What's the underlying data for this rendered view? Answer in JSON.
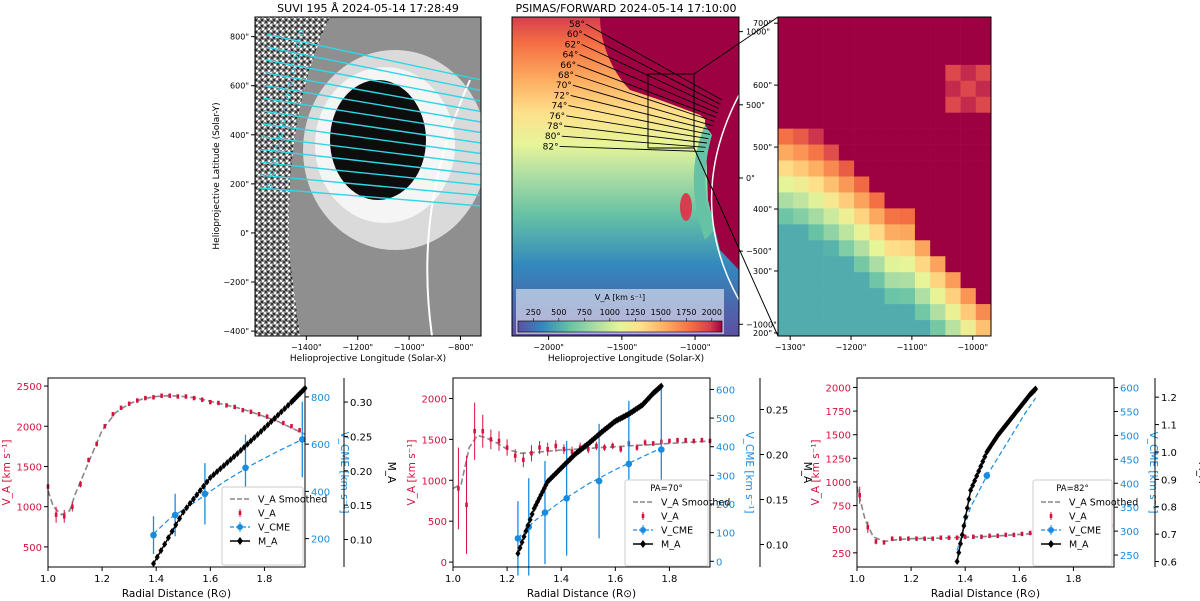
{
  "chart_data": [
    {
      "type": "image",
      "panel": "suvi",
      "title": "SUVI 195 Å 2024-05-14 17:28:49",
      "xlabel": "Helioprojective Longitude (Solar-X)",
      "ylabel": "Helioprojective Latitude (Solar-Y)",
      "xlim": [
        -1600,
        -720
      ],
      "ylim": [
        -420,
        880
      ],
      "xticks": [
        -1400,
        -1200,
        -1000,
        -800
      ],
      "xtick_labels": [
        "−1400\"",
        "−1200\"",
        "−1000\"",
        "−800\""
      ],
      "yticks": [
        -400,
        -200,
        0,
        200,
        400,
        600,
        800
      ],
      "ytick_labels": [
        "−400\"",
        "−200\"",
        "0\"",
        "200\"",
        "400\"",
        "600\"",
        "800\""
      ]
    },
    {
      "type": "heatmap",
      "panel": "psimas",
      "title": "PSIMAS/FORWARD 2024-05-14 17:10:00",
      "xlabel": "Helioprojective Longitude (Solar-X)",
      "xlim": [
        -2250,
        -700
      ],
      "ylim": [
        -1080,
        1100
      ],
      "xticks": [
        -2000,
        -1500,
        -1000
      ],
      "xtick_labels": [
        "−2000\"",
        "−1500\"",
        "−1000\""
      ],
      "yticks": [
        -1000,
        -500,
        0,
        500,
        1000
      ],
      "ytick_labels": [
        "−1000\"",
        "−500\"",
        "0\"",
        "500\"",
        "1000\""
      ],
      "pa_labels": [
        "58°",
        "60°",
        "62°",
        "64°",
        "66°",
        "68°",
        "70°",
        "72°",
        "74°",
        "76°",
        "78°",
        "80°",
        "82°"
      ],
      "colorbar": {
        "label": "V_A [km s⁻¹]",
        "ticks": [
          250,
          500,
          750,
          1000,
          1250,
          1500,
          1750,
          2000
        ],
        "range": [
          100,
          2100
        ]
      }
    },
    {
      "type": "heatmap",
      "panel": "zoom",
      "xlim": [
        -1320,
        -970
      ],
      "ylim": [
        195,
        710
      ],
      "xticks": [
        -1300,
        -1200,
        -1100,
        -1000
      ],
      "xtick_labels": [
        "−1300\"",
        "−1200\"",
        "−1100\"",
        "−1000\""
      ],
      "yticks": [
        200,
        300,
        400,
        500,
        600,
        700
      ],
      "ytick_labels": [
        "200\"",
        "300\"",
        "400\"",
        "500\"",
        "600\"",
        "700\""
      ]
    },
    {
      "type": "line",
      "panel": "pa58",
      "xlabel": "Radial Distance (R⊙)",
      "xlim": [
        1.0,
        1.95
      ],
      "xticks": [
        1.0,
        1.2,
        1.4,
        1.6,
        1.8
      ],
      "xtick_labels": [
        "1.0",
        "1.2",
        "1.4",
        "1.6",
        "1.8"
      ],
      "left_axis": {
        "label": "V_A [km s⁻¹]",
        "ylim": [
          250,
          2600
        ],
        "ticks": [
          500,
          1000,
          1500,
          2000,
          2500
        ],
        "tick_labels": [
          "500",
          "1000",
          "1500",
          "2000",
          "2500"
        ],
        "color": "#d6113f"
      },
      "right_axis": {
        "label": "V_CME [km s⁻¹]",
        "ylim": [
          80,
          880
        ],
        "ticks": [
          200,
          400,
          600,
          800
        ],
        "tick_labels": [
          "200",
          "400",
          "600",
          "800"
        ],
        "color": "#1a8ce0"
      },
      "far_axis": {
        "label": "M_A",
        "ylim": [
          0.06,
          0.335
        ],
        "ticks": [
          0.1,
          0.15,
          0.2,
          0.25,
          0.3
        ],
        "tick_labels": [
          "0.10",
          "0.15",
          "0.20",
          "0.25",
          "0.30"
        ]
      },
      "va_points": {
        "x": [
          1.0,
          1.03,
          1.06,
          1.09,
          1.12,
          1.15,
          1.18,
          1.21,
          1.24,
          1.27,
          1.3,
          1.33,
          1.36,
          1.39,
          1.42,
          1.45,
          1.48,
          1.51,
          1.54,
          1.57,
          1.6,
          1.63,
          1.66,
          1.69,
          1.72,
          1.75,
          1.78,
          1.81,
          1.84,
          1.87,
          1.9,
          1.93
        ],
        "y": [
          1250,
          900,
          880,
          1000,
          1280,
          1580,
          1780,
          2000,
          2150,
          2230,
          2280,
          2320,
          2350,
          2360,
          2380,
          2380,
          2370,
          2370,
          2350,
          2330,
          2300,
          2290,
          2260,
          2240,
          2200,
          2180,
          2150,
          2120,
          2090,
          2040,
          2000,
          1950
        ],
        "err": [
          150,
          100,
          80,
          60,
          40,
          30,
          30,
          20,
          20,
          20,
          15,
          15,
          15,
          15,
          15,
          15,
          15,
          15,
          15,
          15,
          15,
          15,
          15,
          15,
          15,
          15,
          15,
          15,
          15,
          15,
          15,
          15
        ]
      },
      "va_smoothed": {
        "x": [
          1.0,
          1.02,
          1.05,
          1.08,
          1.1,
          1.15,
          1.2,
          1.25,
          1.3,
          1.35,
          1.4,
          1.45,
          1.5,
          1.55,
          1.6,
          1.65,
          1.7,
          1.75,
          1.8,
          1.85,
          1.9,
          1.95
        ],
        "y": [
          1200,
          1000,
          900,
          950,
          1150,
          1550,
          1950,
          2170,
          2280,
          2340,
          2370,
          2380,
          2370,
          2350,
          2310,
          2270,
          2230,
          2180,
          2120,
          2060,
          1980,
          1900
        ]
      },
      "vcme": {
        "x": [
          1.39,
          1.47,
          1.58,
          1.73,
          1.94
        ],
        "y": [
          215,
          300,
          390,
          500,
          620
        ],
        "err": [
          80,
          90,
          130,
          140,
          160
        ]
      },
      "vcme_fit": {
        "x": [
          1.39,
          1.45,
          1.55,
          1.65,
          1.75,
          1.85,
          1.94
        ],
        "y": [
          220,
          285,
          360,
          440,
          510,
          570,
          620
        ]
      },
      "ma": {
        "x": [
          1.39,
          1.5,
          1.6,
          1.7,
          1.8,
          1.9,
          1.95
        ],
        "y": [
          0.065,
          0.14,
          0.19,
          0.225,
          0.262,
          0.3,
          0.32
        ]
      },
      "legend": {
        "title": "",
        "entries": [
          "V_A Smoothed",
          "V_A",
          "V_CME",
          "M_A"
        ]
      }
    },
    {
      "type": "line",
      "panel": "pa70",
      "xlabel": "Radial Distance (R⊙)",
      "xlim": [
        1.0,
        1.95
      ],
      "xticks": [
        1.0,
        1.2,
        1.4,
        1.6,
        1.8
      ],
      "xtick_labels": [
        "1.0",
        "1.2",
        "1.4",
        "1.6",
        "1.8"
      ],
      "left_axis": {
        "label": "V_A [km s⁻¹]",
        "ylim": [
          -60,
          2250
        ],
        "ticks": [
          0,
          500,
          1000,
          1500,
          2000
        ],
        "tick_labels": [
          "0",
          "500",
          "1000",
          "1500",
          "2000"
        ],
        "color": "#d6113f"
      },
      "right_axis": {
        "label": "V_CME [km s⁻¹]",
        "ylim": [
          -20,
          640
        ],
        "ticks": [
          0,
          100,
          200,
          300,
          400,
          500,
          600
        ],
        "tick_labels": [
          "0",
          "100",
          "200",
          "300",
          "400",
          "500",
          "600"
        ],
        "color": "#1a8ce0"
      },
      "far_axis": {
        "label": "M_A",
        "ylim": [
          0.075,
          0.285
        ],
        "ticks": [
          0.1,
          0.15,
          0.2,
          0.25
        ],
        "tick_labels": [
          "0.10",
          "0.15",
          "0.20",
          "0.25"
        ]
      },
      "va_points": {
        "x": [
          1.02,
          1.05,
          1.08,
          1.11,
          1.14,
          1.17,
          1.2,
          1.23,
          1.26,
          1.29,
          1.32,
          1.35,
          1.38,
          1.41,
          1.44,
          1.47,
          1.5,
          1.53,
          1.56,
          1.59,
          1.62,
          1.65,
          1.68,
          1.71,
          1.74,
          1.77,
          1.8,
          1.83,
          1.86,
          1.89,
          1.92,
          1.95
        ],
        "y": [
          900,
          700,
          1600,
          1600,
          1500,
          1480,
          1400,
          1300,
          1250,
          1330,
          1400,
          1380,
          1420,
          1380,
          1350,
          1400,
          1380,
          1420,
          1400,
          1420,
          1380,
          1450,
          1400,
          1460,
          1450,
          1470,
          1480,
          1490,
          1490,
          1480,
          1490,
          1480
        ],
        "err": [
          500,
          600,
          350,
          200,
          120,
          120,
          100,
          80,
          90,
          100,
          80,
          80,
          70,
          60,
          60,
          60,
          50,
          50,
          40,
          40,
          40,
          40,
          40,
          40,
          30,
          30,
          30,
          30,
          30,
          30,
          30,
          30
        ]
      },
      "va_smoothed": {
        "x": [
          1.0,
          1.03,
          1.06,
          1.09,
          1.12,
          1.15,
          1.2,
          1.25,
          1.3,
          1.4,
          1.5,
          1.6,
          1.7,
          1.8,
          1.9,
          1.95
        ],
        "y": [
          900,
          950,
          1400,
          1550,
          1520,
          1480,
          1380,
          1330,
          1340,
          1370,
          1390,
          1410,
          1430,
          1450,
          1470,
          1480
        ]
      },
      "vcme": {
        "x": [
          1.24,
          1.28,
          1.34,
          1.42,
          1.54,
          1.65,
          1.77
        ],
        "y": [
          80,
          120,
          170,
          220,
          280,
          340,
          390
        ],
        "err": [
          130,
          170,
          180,
          200,
          200,
          220,
          210
        ]
      },
      "vcme_fit": {
        "x": [
          1.24,
          1.3,
          1.4,
          1.5,
          1.6,
          1.7,
          1.77
        ],
        "y": [
          80,
          140,
          210,
          270,
          320,
          365,
          395
        ]
      },
      "ma": {
        "x": [
          1.24,
          1.3,
          1.35,
          1.4,
          1.45,
          1.5,
          1.55,
          1.6,
          1.65,
          1.7,
          1.74,
          1.77
        ],
        "y": [
          0.09,
          0.14,
          0.17,
          0.185,
          0.2,
          0.212,
          0.225,
          0.237,
          0.245,
          0.255,
          0.268,
          0.276
        ]
      },
      "legend": {
        "title": "PA=70°",
        "entries": [
          "V_A Smoothed",
          "V_A",
          "V_CME",
          "M_A"
        ]
      }
    },
    {
      "type": "line",
      "panel": "pa82",
      "xlabel": "Radial Distance (R⊙)",
      "xlim": [
        1.0,
        1.95
      ],
      "xticks": [
        1.0,
        1.2,
        1.4,
        1.6,
        1.8
      ],
      "xtick_labels": [
        "1.0",
        "1.2",
        "1.4",
        "1.6",
        "1.8"
      ],
      "left_axis": {
        "label": "V_A [km s⁻¹]",
        "ylim": [
          100,
          2100
        ],
        "ticks": [
          250,
          500,
          750,
          1000,
          1250,
          1500,
          1750,
          2000
        ],
        "tick_labels": [
          "250",
          "500",
          "750",
          "1000",
          "1250",
          "1500",
          "1750",
          "2000"
        ],
        "color": "#d6113f"
      },
      "right_axis": {
        "label": "V_CME [km s⁻¹]",
        "ylim": [
          225,
          620
        ],
        "ticks": [
          250,
          300,
          350,
          400,
          450,
          500,
          550,
          600
        ],
        "tick_labels": [
          "250",
          "300",
          "350",
          "400",
          "450",
          "500",
          "550",
          "600"
        ],
        "color": "#1a8ce0"
      },
      "far_axis": {
        "label": "M_A",
        "ylim": [
          0.58,
          1.27
        ],
        "ticks": [
          0.6,
          0.7,
          0.8,
          0.9,
          1.0,
          1.1,
          1.2
        ],
        "tick_labels": [
          "0.6",
          "0.7",
          "0.8",
          "0.9",
          "1.0",
          "1.1",
          "1.2"
        ]
      },
      "va_points": {
        "x": [
          1.01,
          1.04,
          1.07,
          1.1,
          1.13,
          1.16,
          1.19,
          1.22,
          1.25,
          1.28,
          1.31,
          1.34,
          1.37,
          1.4,
          1.43,
          1.46,
          1.49,
          1.52,
          1.55,
          1.58,
          1.61,
          1.64,
          1.67,
          1.7,
          1.73,
          1.76,
          1.79,
          1.82,
          1.85,
          1.88,
          1.91,
          1.94
        ],
        "y": [
          860,
          520,
          370,
          360,
          400,
          400,
          400,
          400,
          400,
          400,
          410,
          410,
          410,
          420,
          420,
          420,
          430,
          430,
          440,
          440,
          450,
          460,
          460,
          470,
          480,
          490,
          500,
          500,
          510,
          520,
          530,
          540
        ],
        "err": [
          90,
          60,
          30,
          20,
          10,
          10,
          10,
          10,
          10,
          10,
          10,
          10,
          10,
          10,
          10,
          10,
          10,
          10,
          10,
          10,
          10,
          10,
          10,
          10,
          10,
          10,
          10,
          10,
          10,
          10,
          10,
          10
        ]
      },
      "va_smoothed": {
        "x": [
          1.0,
          1.03,
          1.06,
          1.1,
          1.15,
          1.2,
          1.3,
          1.4,
          1.5,
          1.6,
          1.7,
          1.8,
          1.9,
          1.95
        ],
        "y": [
          950,
          600,
          420,
          370,
          390,
          400,
          405,
          415,
          425,
          445,
          465,
          490,
          520,
          540
        ]
      },
      "vcme": {
        "x": [
          1.48
        ],
        "y": [
          416
        ],
        "err": [
          8
        ]
      },
      "vcme_fit": {
        "x": [
          1.37,
          1.42,
          1.48,
          1.55,
          1.62,
          1.66
        ],
        "y": [
          260,
          350,
          416,
          480,
          545,
          578
        ]
      },
      "ma": {
        "x": [
          1.37,
          1.42,
          1.48,
          1.52,
          1.56,
          1.6,
          1.64,
          1.66
        ],
        "y": [
          0.6,
          0.86,
          1.0,
          1.06,
          1.11,
          1.16,
          1.21,
          1.23
        ]
      },
      "legend": {
        "title": "PA=82°",
        "entries": [
          "V_A Smoothed",
          "V_A",
          "V_CME",
          "M_A"
        ]
      }
    }
  ]
}
